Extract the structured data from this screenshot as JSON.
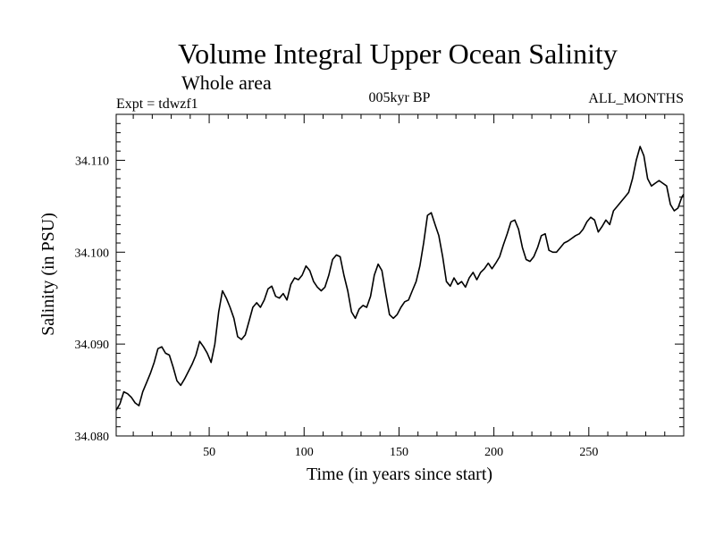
{
  "chart_data": {
    "type": "line",
    "title": "Volume Integral Upper Ocean Salinity",
    "subtitle": "Whole area",
    "annotations": {
      "left": "Expt = tdwzf1",
      "center": "005kyr BP",
      "right": "ALL_MONTHS"
    },
    "xlabel": "Time (in years since start)",
    "ylabel": "Salinity (in PSU)",
    "xlim": [
      1,
      300
    ],
    "ylim": [
      34.08,
      34.115
    ],
    "xticks": [
      50,
      100,
      150,
      200,
      250
    ],
    "xtick_labels": [
      "50",
      "100",
      "150",
      "200",
      "250"
    ],
    "yticks": [
      34.08,
      34.09,
      34.1,
      34.11
    ],
    "ytick_labels": [
      "34.080",
      "34.090",
      "34.100",
      "34.110"
    ],
    "series": [
      {
        "name": "Salinity",
        "points": [
          [
            1,
            34.0828
          ],
          [
            3,
            34.0835
          ],
          [
            5,
            34.0848
          ],
          [
            7,
            34.0846
          ],
          [
            9,
            34.0842
          ],
          [
            11,
            34.0836
          ],
          [
            13,
            34.0833
          ],
          [
            15,
            34.0848
          ],
          [
            17,
            34.0858
          ],
          [
            19,
            34.0868
          ],
          [
            21,
            34.088
          ],
          [
            23,
            34.0895
          ],
          [
            25,
            34.0897
          ],
          [
            27,
            34.089
          ],
          [
            29,
            34.0888
          ],
          [
            31,
            34.0875
          ],
          [
            33,
            34.086
          ],
          [
            35,
            34.0855
          ],
          [
            37,
            34.0862
          ],
          [
            39,
            34.087
          ],
          [
            41,
            34.0878
          ],
          [
            43,
            34.0888
          ],
          [
            45,
            34.0903
          ],
          [
            47,
            34.0897
          ],
          [
            49,
            34.089
          ],
          [
            51,
            34.088
          ],
          [
            53,
            34.09
          ],
          [
            55,
            34.0935
          ],
          [
            57,
            34.0958
          ],
          [
            59,
            34.095
          ],
          [
            61,
            34.094
          ],
          [
            63,
            34.0928
          ],
          [
            65,
            34.0908
          ],
          [
            67,
            34.0905
          ],
          [
            69,
            34.091
          ],
          [
            71,
            34.0925
          ],
          [
            73,
            34.094
          ],
          [
            75,
            34.0945
          ],
          [
            77,
            34.094
          ],
          [
            79,
            34.0948
          ],
          [
            81,
            34.096
          ],
          [
            83,
            34.0963
          ],
          [
            85,
            34.0952
          ],
          [
            87,
            34.095
          ],
          [
            89,
            34.0955
          ],
          [
            91,
            34.0948
          ],
          [
            93,
            34.0965
          ],
          [
            95,
            34.0972
          ],
          [
            97,
            34.097
          ],
          [
            99,
            34.0975
          ],
          [
            101,
            34.0985
          ],
          [
            103,
            34.098
          ],
          [
            105,
            34.0968
          ],
          [
            107,
            34.0962
          ],
          [
            109,
            34.0958
          ],
          [
            111,
            34.0962
          ],
          [
            113,
            34.0975
          ],
          [
            115,
            34.0992
          ],
          [
            117,
            34.0997
          ],
          [
            119,
            34.0995
          ],
          [
            121,
            34.0975
          ],
          [
            123,
            34.0958
          ],
          [
            125,
            34.0935
          ],
          [
            127,
            34.0928
          ],
          [
            129,
            34.0938
          ],
          [
            131,
            34.0942
          ],
          [
            133,
            34.094
          ],
          [
            135,
            34.0952
          ],
          [
            137,
            34.0975
          ],
          [
            139,
            34.0987
          ],
          [
            141,
            34.098
          ],
          [
            143,
            34.0955
          ],
          [
            145,
            34.0932
          ],
          [
            147,
            34.0928
          ],
          [
            149,
            34.0932
          ],
          [
            151,
            34.094
          ],
          [
            153,
            34.0946
          ],
          [
            155,
            34.0948
          ],
          [
            157,
            34.0958
          ],
          [
            159,
            34.0968
          ],
          [
            161,
            34.0985
          ],
          [
            163,
            34.101
          ],
          [
            165,
            34.104
          ],
          [
            167,
            34.1043
          ],
          [
            169,
            34.103
          ],
          [
            171,
            34.1018
          ],
          [
            173,
            34.0995
          ],
          [
            175,
            34.0968
          ],
          [
            177,
            34.0963
          ],
          [
            179,
            34.0972
          ],
          [
            181,
            34.0965
          ],
          [
            183,
            34.0968
          ],
          [
            185,
            34.0962
          ],
          [
            187,
            34.0972
          ],
          [
            189,
            34.0978
          ],
          [
            191,
            34.097
          ],
          [
            193,
            34.0978
          ],
          [
            195,
            34.0982
          ],
          [
            197,
            34.0988
          ],
          [
            199,
            34.0982
          ],
          [
            201,
            34.0988
          ],
          [
            203,
            34.0995
          ],
          [
            205,
            34.1008
          ],
          [
            207,
            34.102
          ],
          [
            209,
            34.1033
          ],
          [
            211,
            34.1035
          ],
          [
            213,
            34.1025
          ],
          [
            215,
            34.1005
          ],
          [
            217,
            34.0992
          ],
          [
            219,
            34.099
          ],
          [
            221,
            34.0995
          ],
          [
            223,
            34.1005
          ],
          [
            225,
            34.1018
          ],
          [
            227,
            34.102
          ],
          [
            229,
            34.1002
          ],
          [
            231,
            34.1
          ],
          [
            233,
            34.1
          ],
          [
            235,
            34.1005
          ],
          [
            237,
            34.101
          ],
          [
            239,
            34.1012
          ],
          [
            241,
            34.1015
          ],
          [
            243,
            34.1018
          ],
          [
            245,
            34.102
          ],
          [
            247,
            34.1025
          ],
          [
            249,
            34.1033
          ],
          [
            251,
            34.1038
          ],
          [
            253,
            34.1035
          ],
          [
            255,
            34.1022
          ],
          [
            257,
            34.1028
          ],
          [
            259,
            34.1035
          ],
          [
            261,
            34.103
          ],
          [
            263,
            34.1045
          ],
          [
            265,
            34.105
          ],
          [
            267,
            34.1055
          ],
          [
            269,
            34.106
          ],
          [
            271,
            34.1065
          ],
          [
            273,
            34.108
          ],
          [
            275,
            34.11
          ],
          [
            277,
            34.1115
          ],
          [
            279,
            34.1105
          ],
          [
            281,
            34.108
          ],
          [
            283,
            34.1072
          ],
          [
            285,
            34.1075
          ],
          [
            287,
            34.1078
          ],
          [
            289,
            34.1075
          ],
          [
            291,
            34.1072
          ],
          [
            293,
            34.1052
          ],
          [
            295,
            34.1045
          ],
          [
            297,
            34.1048
          ],
          [
            299,
            34.106
          ],
          [
            300,
            34.1063
          ]
        ]
      }
    ]
  }
}
